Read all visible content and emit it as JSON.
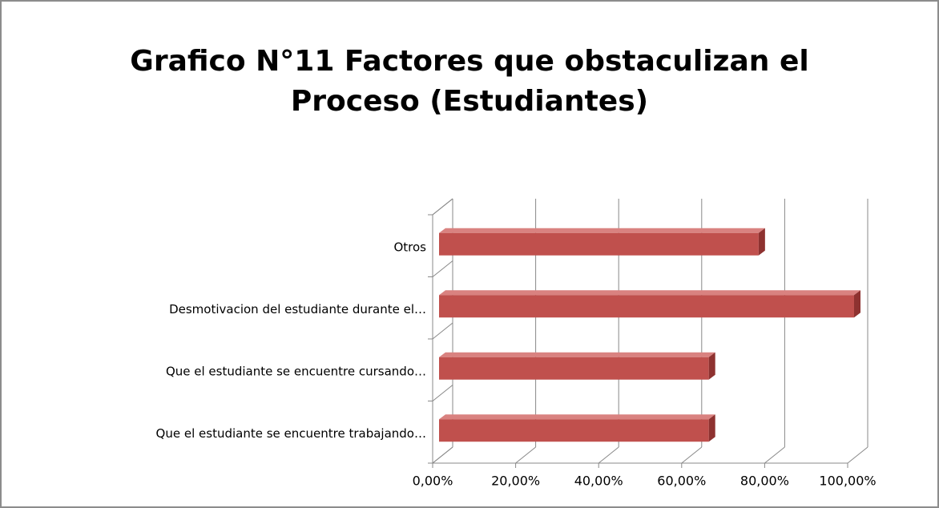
{
  "chart_data": {
    "type": "bar3d_horizontal",
    "title": "Grafico N°11 Factores que obstaculizan el Proceso (Estudiantes)",
    "categories": [
      "Que el estudiante se encuentre trabajando…",
      "Que el estudiante se encuentre cursando…",
      "Desmotivacion del estudiante durante el…",
      "Otros"
    ],
    "values": [
      65,
      65,
      100,
      77
    ],
    "color": "#c0504d",
    "xlim": [
      0,
      100
    ],
    "xticks": [
      {
        "value": 0,
        "label": "0,00%"
      },
      {
        "value": 20,
        "label": "20,00%"
      },
      {
        "value": 40,
        "label": "40,00%"
      },
      {
        "value": 60,
        "label": "60,00%"
      },
      {
        "value": 80,
        "label": "80,00%"
      },
      {
        "value": 100,
        "label": "100,00%"
      }
    ],
    "grid": true
  }
}
